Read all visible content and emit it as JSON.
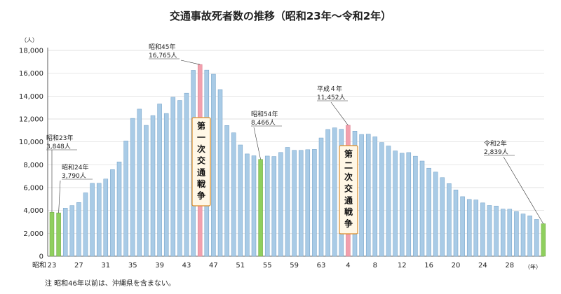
{
  "chart_data": {
    "type": "bar",
    "title": "交通事故死者数の推移（昭和23年〜令和2年）",
    "unit_y": "（人）",
    "unit_x": "（年）",
    "ylim": [
      0,
      18000
    ],
    "y_ticks": [
      "0",
      "2,000",
      "4,000",
      "6,000",
      "8,000",
      "10,000",
      "12,000",
      "14,000",
      "16,000",
      "18,000"
    ],
    "x_tick_labels": [
      {
        "index": 0,
        "label": "昭和23"
      },
      {
        "index": 4,
        "label": "27"
      },
      {
        "index": 8,
        "label": "31"
      },
      {
        "index": 12,
        "label": "35"
      },
      {
        "index": 16,
        "label": "39"
      },
      {
        "index": 20,
        "label": "43"
      },
      {
        "index": 24,
        "label": "47"
      },
      {
        "index": 28,
        "label": "51"
      },
      {
        "index": 32,
        "label": "55"
      },
      {
        "index": 36,
        "label": "59"
      },
      {
        "index": 40,
        "label": "63"
      },
      {
        "index": 44,
        "label": "4"
      },
      {
        "index": 48,
        "label": "8"
      },
      {
        "index": 52,
        "label": "12"
      },
      {
        "index": 56,
        "label": "16"
      },
      {
        "index": 60,
        "label": "20"
      },
      {
        "index": 64,
        "label": "24"
      },
      {
        "index": 68,
        "label": "28"
      }
    ],
    "values": [
      3848,
      3790,
      4202,
      4429,
      4696,
      5544,
      6374,
      6379,
      6751,
      7575,
      8248,
      10079,
      12055,
      12865,
      11445,
      12301,
      13318,
      12484,
      13904,
      13618,
      14256,
      16257,
      16765,
      16278,
      15918,
      14574,
      11432,
      10792,
      9734,
      8945,
      8783,
      8466,
      8760,
      8719,
      9073,
      9520,
      9262,
      9261,
      9317,
      9347,
      10344,
      11086,
      11227,
      11105,
      11452,
      10942,
      10649,
      10679,
      10442,
      9942,
      9640,
      9211,
      9006,
      9066,
      8747,
      8326,
      7702,
      7358,
      6871,
      6352,
      5796,
      5209,
      4968,
      4922,
      4663,
      4438,
      4388,
      4117,
      4113,
      3904,
      3694,
      3532,
      3215,
      2839
    ],
    "colors": {
      "default": "#a9cbe6",
      "default_stroke": "#6d9dc5",
      "green": "#8fcf5e",
      "pink": "#f2a0ad"
    },
    "highlight_green": [
      0,
      1,
      31,
      73
    ],
    "highlight_pink": [
      22,
      44
    ],
    "annotations": [
      {
        "index": 0,
        "line1": "昭和23年",
        "line2": "3,848人"
      },
      {
        "index": 1,
        "line1": "昭和24年",
        "line2": "3,790人"
      },
      {
        "index": 22,
        "line1": "昭和45年",
        "line2": "16,765人"
      },
      {
        "index": 31,
        "line1": "昭和54年",
        "line2": "8,466人"
      },
      {
        "index": 44,
        "line1": "平成４年",
        "line2": "11,452人"
      },
      {
        "index": 73,
        "line1": "令和2年",
        "line2": "2,839人"
      }
    ],
    "boxes": [
      {
        "text": "第一次交通戦争"
      },
      {
        "text": "第二次交通戦争"
      }
    ],
    "note": "注  昭和46年以前は、沖縄県を含まない。"
  }
}
